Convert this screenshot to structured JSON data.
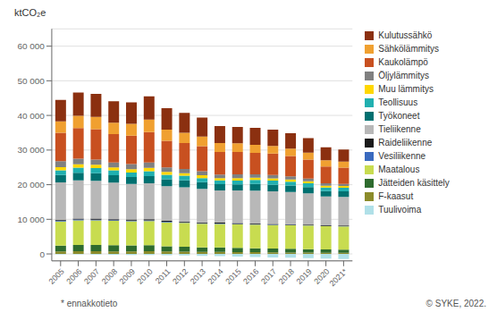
{
  "chart_data": {
    "type": "bar",
    "stacked": true,
    "grid": true,
    "legend": "right",
    "y_label": "ktCO₂e",
    "annotations": [
      "* ennakkotieto",
      "© SYKE, 2022."
    ],
    "categories": [
      "2005",
      "2006",
      "2007",
      "2008",
      "2009",
      "2010",
      "2011",
      "2012",
      "2013",
      "2014",
      "2015",
      "2016",
      "2017",
      "2018",
      "2019",
      "2020",
      "2021*"
    ],
    "ylim": [
      -2000,
      65000
    ],
    "yticks": [
      0,
      {
        "value": 10000,
        "label": "10 000"
      },
      {
        "value": 20000,
        "label": "20 000"
      },
      {
        "value": 30000,
        "label": "30 000"
      },
      {
        "value": 40000,
        "label": "40 000"
      },
      {
        "value": 50000,
        "label": "50 000"
      },
      {
        "value": 60000,
        "label": "60 000"
      }
    ],
    "series": [
      {
        "name": "Tuulivoima",
        "color": "#b0e0e8",
        "values": [
          -100,
          -150,
          -200,
          -250,
          -300,
          -300,
          -350,
          -450,
          -550,
          -650,
          -750,
          -900,
          -1000,
          -1100,
          -1200,
          -1350,
          -1500
        ]
      },
      {
        "name": "F-kaasut",
        "color": "#8b8b2a",
        "values": [
          700,
          800,
          800,
          750,
          750,
          800,
          700,
          650,
          600,
          600,
          550,
          500,
          450,
          420,
          380,
          350,
          320
        ]
      },
      {
        "name": "Jätteiden käsittely",
        "color": "#2e6b2e",
        "values": [
          1700,
          1800,
          1800,
          1800,
          1700,
          1700,
          1500,
          1400,
          1300,
          1250,
          1200,
          1150,
          1100,
          1050,
          1000,
          950,
          900
        ]
      },
      {
        "name": "Maatalous",
        "color": "#c8dc50",
        "values": [
          7000,
          7100,
          7100,
          7000,
          7000,
          7000,
          6900,
          6900,
          6800,
          6800,
          6800,
          6800,
          6800,
          6800,
          6800,
          6700,
          6700
        ]
      },
      {
        "name": "Vesiliikenne",
        "color": "#3a6abf",
        "values": [
          200,
          220,
          210,
          200,
          200,
          200,
          180,
          170,
          160,
          150,
          140,
          130,
          125,
          120,
          115,
          100,
          100
        ]
      },
      {
        "name": "Raideliikenne",
        "color": "#1a1a1a",
        "values": [
          280,
          300,
          290,
          280,
          280,
          290,
          260,
          250,
          240,
          230,
          220,
          210,
          200,
          195,
          185,
          175,
          165
        ]
      },
      {
        "name": "Tieliikenne",
        "color": "#b8b8b8",
        "values": [
          10800,
          11000,
          10900,
          10600,
          10300,
          10400,
          10000,
          9900,
          9700,
          9300,
          9400,
          9500,
          9400,
          9300,
          9000,
          8300,
          8300
        ]
      },
      {
        "name": "Työkoneet",
        "color": "#007070",
        "values": [
          2100,
          2200,
          2200,
          2100,
          2000,
          2100,
          2000,
          2000,
          1900,
          1800,
          1800,
          1900,
          1900,
          1900,
          1800,
          1600,
          1600
        ]
      },
      {
        "name": "Teollisuus",
        "color": "#20b0b0",
        "values": [
          1400,
          1500,
          1500,
          1400,
          1300,
          1400,
          1300,
          1300,
          1200,
          1100,
          1100,
          1200,
          1200,
          1100,
          1100,
          1000,
          1000
        ]
      },
      {
        "name": "Muu lämmitys",
        "color": "#ffd700",
        "values": [
          900,
          1000,
          950,
          850,
          950,
          1000,
          850,
          750,
          800,
          650,
          700,
          650,
          650,
          650,
          600,
          550,
          550
        ]
      },
      {
        "name": "Öljylämmitys",
        "color": "#808080",
        "values": [
          1700,
          1600,
          1500,
          1400,
          1500,
          1500,
          1300,
          1200,
          1200,
          1050,
          1050,
          950,
          950,
          850,
          750,
          650,
          600
        ]
      },
      {
        "name": "Kaukolämpö",
        "color": "#c85020",
        "values": [
          8200,
          8800,
          8800,
          8200,
          8200,
          8800,
          7700,
          7500,
          7200,
          6500,
          6500,
          6200,
          6200,
          5900,
          5500,
          4900,
          4700
        ]
      },
      {
        "name": "Sähkölämmitys",
        "color": "#f0a030",
        "values": [
          3300,
          3600,
          3500,
          3300,
          3400,
          3600,
          3200,
          3000,
          2800,
          2600,
          2500,
          2300,
          2200,
          2100,
          2000,
          1800,
          1700
        ]
      },
      {
        "name": "Kulutussähkö",
        "color": "#8b3010",
        "values": [
          6200,
          6700,
          6700,
          6200,
          6200,
          6700,
          6200,
          5700,
          5500,
          4900,
          4700,
          4900,
          4700,
          4500,
          4200,
          3700,
          3500
        ]
      }
    ]
  }
}
